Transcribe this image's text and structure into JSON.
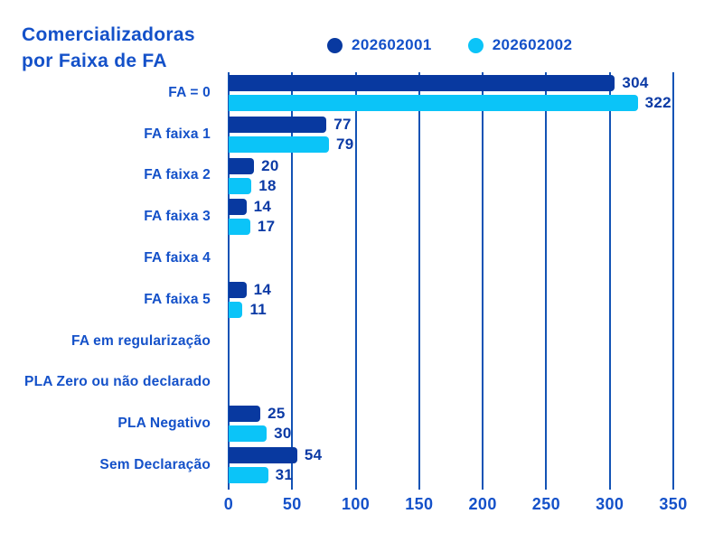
{
  "title": {
    "line1": "Comercializadoras",
    "line2": "por Faixa de FA"
  },
  "legend": {
    "items": [
      {
        "label": "202602001",
        "color": "#0839A0"
      },
      {
        "label": "202602002",
        "color": "#0BC4F8"
      }
    ]
  },
  "chart_data": {
    "type": "bar",
    "orientation": "horizontal",
    "title": "Comercializadoras por Faixa de FA",
    "categories": [
      "FA = 0",
      "FA faixa 1",
      "FA faixa 2",
      "FA faixa 3",
      "FA faixa 4",
      "FA faixa 5",
      "FA em regularização",
      "PLA Zero ou não declarado",
      "PLA Negativo",
      "Sem Declaração"
    ],
    "series": [
      {
        "name": "202602001",
        "color": "#0839A0",
        "values": [
          304,
          77,
          20,
          14,
          0,
          14,
          0,
          0,
          25,
          54
        ]
      },
      {
        "name": "202602002",
        "color": "#0BC4F8",
        "values": [
          322,
          79,
          18,
          17,
          0,
          11,
          0,
          0,
          30,
          31
        ]
      }
    ],
    "xlim": [
      0,
      350
    ],
    "xticks": [
      0,
      50,
      100,
      150,
      200,
      250,
      300,
      350
    ],
    "xlabel": "",
    "ylabel": "",
    "grid": "vertical-only",
    "legend_position": "top",
    "value_labels": "shown-at-bar-end-when-nonzero"
  },
  "colors": {
    "series1": "#0839A0",
    "series2": "#0BC4F8",
    "grid": "#1353B5",
    "text": "#1451C9",
    "values": "#0B3AA5",
    "bg": "#FFFFFF"
  }
}
